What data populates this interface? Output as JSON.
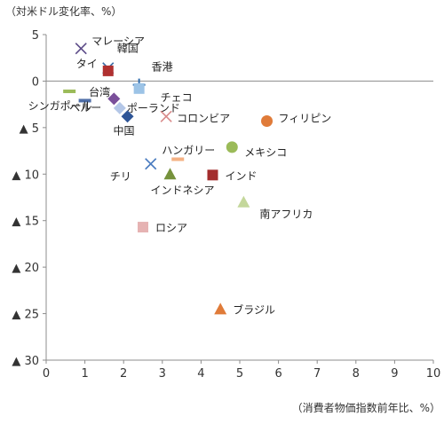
{
  "chart_data": {
    "type": "scatter",
    "ylabel": "（対米ドル変化率、%）",
    "xlabel": "（消費者物価指数前年比、%）",
    "xlim": [
      0,
      10
    ],
    "ylim": [
      -30,
      5
    ],
    "x_ticks": [
      "0",
      "1",
      "2",
      "3",
      "4",
      "5",
      "6",
      "7",
      "8",
      "9",
      "10"
    ],
    "y_ticks": [
      {
        "value": 5,
        "label": "5"
      },
      {
        "value": 0,
        "label": "0"
      },
      {
        "value": -5,
        "label": "▲ 5"
      },
      {
        "value": -10,
        "label": "▲ 10"
      },
      {
        "value": -15,
        "label": "▲ 15"
      },
      {
        "value": -20,
        "label": "▲ 20"
      },
      {
        "value": -25,
        "label": "▲ 25"
      },
      {
        "value": -30,
        "label": "▲ 30"
      }
    ],
    "grid": false,
    "points": [
      {
        "name": "マレーシア",
        "x": 0.9,
        "y": 3.5,
        "marker": "x",
        "color": "#5b4a87"
      },
      {
        "name": "韓国",
        "x": 1.6,
        "y": 1.4,
        "marker": "x",
        "color": "#3b6ea8"
      },
      {
        "name": "タイ",
        "x": 1.6,
        "y": 1.1,
        "marker": "square",
        "color": "#b03030"
      },
      {
        "name": "香港",
        "x": 2.4,
        "y": -0.4,
        "marker": "plus",
        "color": "#2f6db0"
      },
      {
        "name": "チェコ",
        "x": 2.4,
        "y": -0.8,
        "marker": "square",
        "color": "#9cc3e6"
      },
      {
        "name": "台湾",
        "x": 0.6,
        "y": -1.1,
        "marker": "dash",
        "color": "#9bbb59"
      },
      {
        "name": "シンガポール",
        "x": 1.0,
        "y": -2.1,
        "marker": "dash",
        "color": "#4f6fa8"
      },
      {
        "name": "ポーランド",
        "x": 1.9,
        "y": -2.9,
        "marker": "diamond",
        "color": "#b4c7e7"
      },
      {
        "name": "ペルー",
        "x": 1.75,
        "y": -1.9,
        "marker": "diamond",
        "color": "#7a4f9a"
      },
      {
        "name": "中国",
        "x": 2.1,
        "y": -3.8,
        "marker": "diamond",
        "color": "#2e5597"
      },
      {
        "name": "コロンビア",
        "x": 3.1,
        "y": -3.8,
        "marker": "x",
        "color": "#d98a8a"
      },
      {
        "name": "フィリピン",
        "x": 5.7,
        "y": -4.3,
        "marker": "circle",
        "color": "#e07b39"
      },
      {
        "name": "メキシコ",
        "x": 4.8,
        "y": -7.1,
        "marker": "circle",
        "color": "#9bbb59"
      },
      {
        "name": "ハンガリー",
        "x": 3.4,
        "y": -8.4,
        "marker": "dash",
        "color": "#f4b183"
      },
      {
        "name": "チリ",
        "x": 2.7,
        "y": -8.9,
        "marker": "x",
        "color": "#4a7cc0"
      },
      {
        "name": "インドネシア",
        "x": 3.2,
        "y": -10.0,
        "marker": "triangle",
        "color": "#76923c"
      },
      {
        "name": "インド",
        "x": 4.3,
        "y": -10.1,
        "marker": "square",
        "color": "#a32d2d"
      },
      {
        "name": "南アフリカ",
        "x": 5.1,
        "y": -13.0,
        "marker": "triangle",
        "color": "#c4d79b"
      },
      {
        "name": "ロシア",
        "x": 2.5,
        "y": -15.7,
        "marker": "square",
        "color": "#e6b3b3"
      },
      {
        "name": "ブラジル",
        "x": 4.5,
        "y": -24.5,
        "marker": "triangle",
        "color": "#e07b39"
      }
    ]
  }
}
